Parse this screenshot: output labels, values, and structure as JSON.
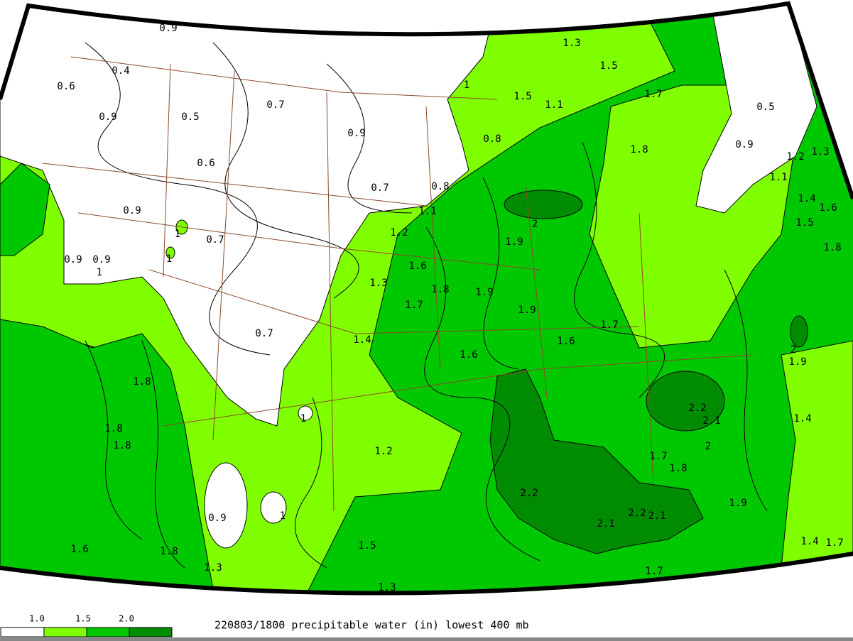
{
  "caption": "220803/1800 precipitable water (in) lowest 400 mb",
  "legend": {
    "labels": [
      "1.0",
      "1.5",
      "2.0"
    ]
  },
  "contour_labels": [
    "0.9",
    "0.4",
    "0.6",
    "0.9",
    "0.5",
    "0.7",
    "0.9",
    "0.6",
    "0.7",
    "0.8",
    "0.9",
    "0.7",
    "1",
    "1",
    "0.9",
    "0.9",
    "1",
    "0.7",
    "1.1",
    "0.8",
    "1.2",
    "1.3",
    "1.5",
    "1.5",
    "1.1",
    "1.7",
    "1",
    "1.8",
    "2",
    "1.9",
    "1.6",
    "1.3",
    "1.8",
    "1.9",
    "1.7",
    "1.9",
    "1.7",
    "1.6",
    "1.4",
    "1.6",
    "0.5",
    "0.9",
    "1.2",
    "1.3",
    "1.1",
    "1.4",
    "1.6",
    "1.5",
    "1.8",
    "2",
    "1.9",
    "2.2",
    "2.1",
    "2",
    "1.4",
    "1.7",
    "1.8",
    "2.2",
    "2.1",
    "2.2",
    "2.1",
    "1.9",
    "1.7",
    "1.5",
    "1.3",
    "1.2",
    "1",
    "0.9",
    "1",
    "1.8",
    "1.8",
    "1.8",
    "1.6",
    "1.8",
    "1.3",
    "1.7",
    "1.4"
  ]
}
